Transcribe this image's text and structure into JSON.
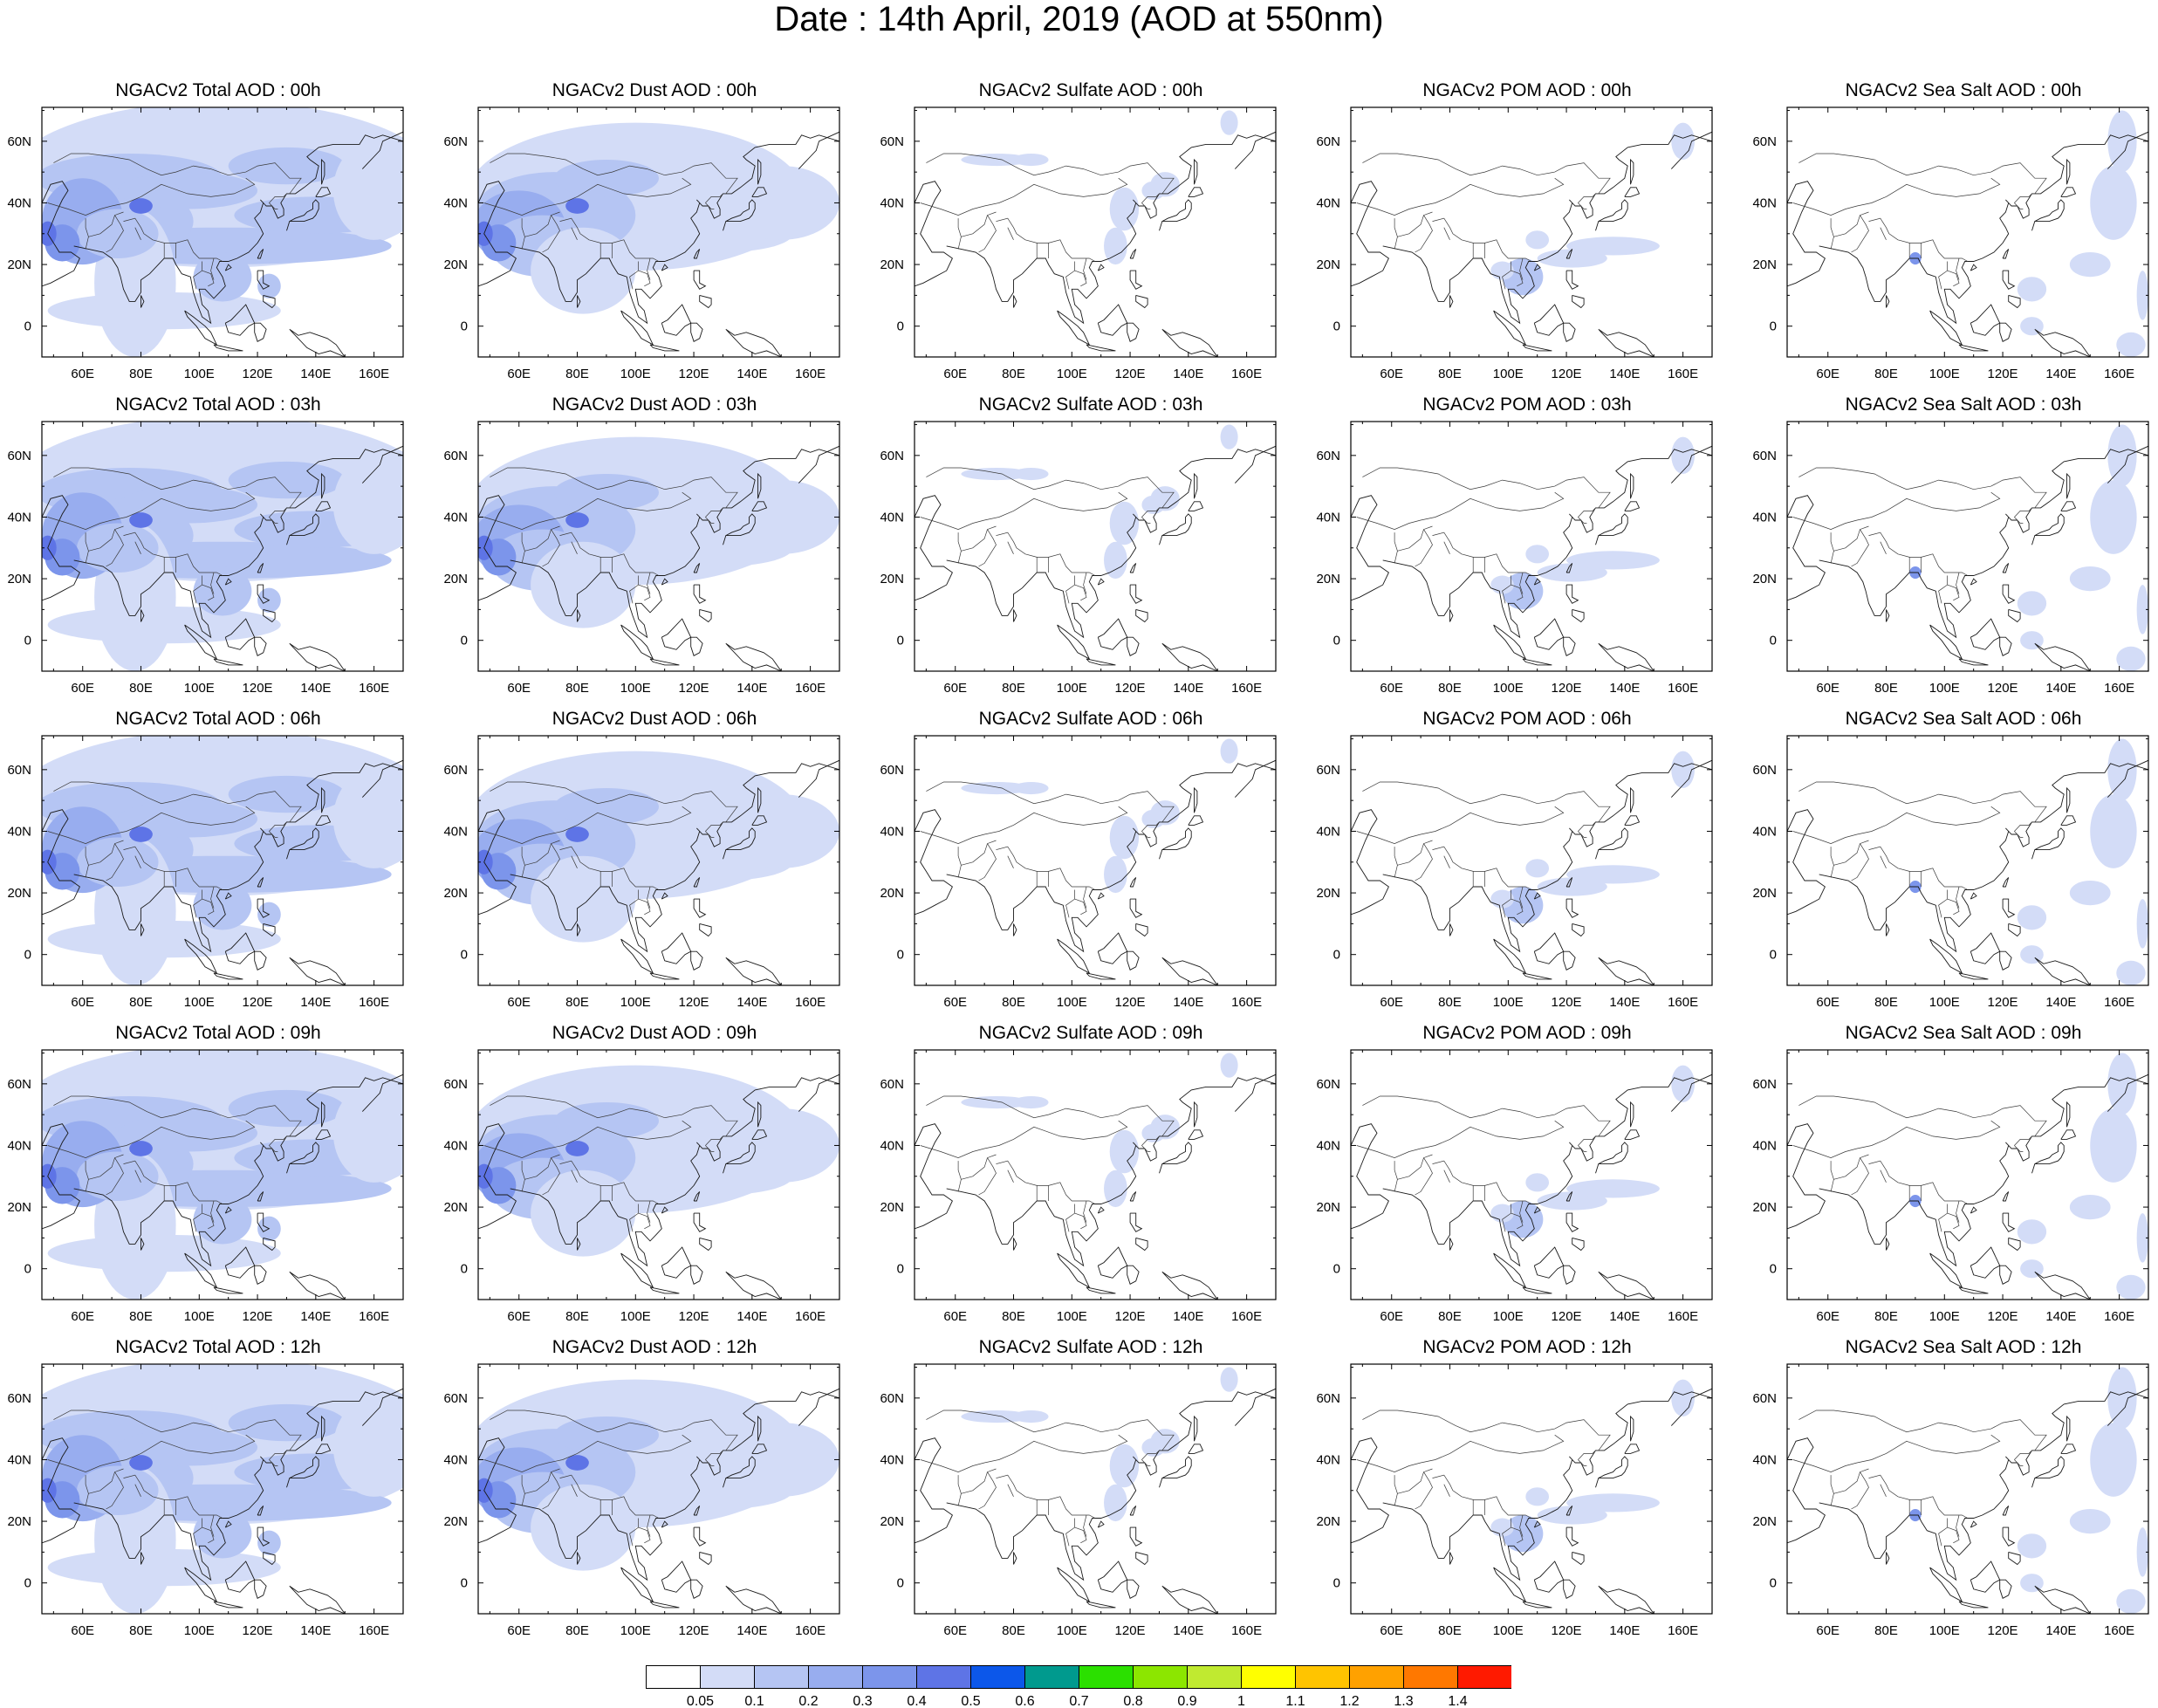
{
  "figure_title": "Date : 14th April, 2019 (AOD at 550nm)",
  "x_ticks": [
    "60E",
    "80E",
    "100E",
    "120E",
    "140E",
    "160E"
  ],
  "y_ticks": [
    "60N",
    "40N",
    "20N",
    "0"
  ],
  "x_tick_values": [
    60,
    80,
    100,
    120,
    140,
    160
  ],
  "y_tick_values": [
    60,
    40,
    20,
    0
  ],
  "lon_range": [
    46,
    170
  ],
  "lat_range": [
    -10,
    71
  ],
  "colorbar": {
    "colors": [
      "#ffffff",
      "#d3dcf7",
      "#b5c5f3",
      "#98adef",
      "#7c95eb",
      "#5e74e6",
      "#0c57ea",
      "#009a8e",
      "#2be000",
      "#8ce600",
      "#c0ea30",
      "#ffff00",
      "#ffc400",
      "#ffa100",
      "#ff7800",
      "#ff1a00"
    ],
    "levels": [
      "0.05",
      "0.1",
      "0.2",
      "0.3",
      "0.4",
      "0.5",
      "0.6",
      "0.7",
      "0.8",
      "0.9",
      "1",
      "1.1",
      "1.2",
      "1.3",
      "1.4"
    ]
  },
  "panels": [
    {
      "title": "NGACv2 Total AOD : 00h",
      "species": "total"
    },
    {
      "title": "NGACv2 Dust AOD : 00h",
      "species": "dust"
    },
    {
      "title": "NGACv2 Sulfate AOD : 00h",
      "species": "sulfate"
    },
    {
      "title": "NGACv2 POM AOD : 00h",
      "species": "pom"
    },
    {
      "title": "NGACv2 Sea Salt AOD : 00h",
      "species": "seasalt"
    },
    {
      "title": "NGACv2 Total AOD : 03h",
      "species": "total"
    },
    {
      "title": "NGACv2 Dust AOD : 03h",
      "species": "dust"
    },
    {
      "title": "NGACv2 Sulfate AOD : 03h",
      "species": "sulfate"
    },
    {
      "title": "NGACv2 POM AOD : 03h",
      "species": "pom"
    },
    {
      "title": "NGACv2 Sea Salt AOD : 03h",
      "species": "seasalt"
    },
    {
      "title": "NGACv2 Total AOD : 06h",
      "species": "total"
    },
    {
      "title": "NGACv2 Dust AOD : 06h",
      "species": "dust"
    },
    {
      "title": "NGACv2 Sulfate AOD : 06h",
      "species": "sulfate"
    },
    {
      "title": "NGACv2 POM AOD : 06h",
      "species": "pom"
    },
    {
      "title": "NGACv2 Sea Salt AOD : 06h",
      "species": "seasalt"
    },
    {
      "title": "NGACv2 Total AOD : 09h",
      "species": "total"
    },
    {
      "title": "NGACv2 Dust AOD : 09h",
      "species": "dust"
    },
    {
      "title": "NGACv2 Sulfate AOD : 09h",
      "species": "sulfate"
    },
    {
      "title": "NGACv2 POM AOD : 09h",
      "species": "pom"
    },
    {
      "title": "NGACv2 Sea Salt  AOD : 09h",
      "species": "seasalt"
    },
    {
      "title": "NGACv2 Total AOD  : 12h",
      "species": "total"
    },
    {
      "title": "NGACv2 Dust AOD : 12h",
      "species": "dust"
    },
    {
      "title": "NGACv2 Sulfate AOD : 12h",
      "species": "sulfate"
    },
    {
      "title": "NGACv2 POM  AOD : 12h",
      "species": "pom"
    },
    {
      "title": "NGACv2 Sea Salt  AOD : 12h",
      "species": "seasalt"
    }
  ]
}
